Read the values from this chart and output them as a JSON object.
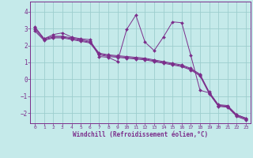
{
  "xlabel": "Windchill (Refroidissement éolien,°C)",
  "xlim": [
    -0.5,
    23.5
  ],
  "ylim": [
    -2.6,
    4.6
  ],
  "xticks": [
    0,
    1,
    2,
    3,
    4,
    5,
    6,
    7,
    8,
    9,
    10,
    11,
    12,
    13,
    14,
    15,
    16,
    17,
    18,
    19,
    20,
    21,
    22,
    23
  ],
  "yticks": [
    -2,
    -1,
    0,
    1,
    2,
    3,
    4
  ],
  "background_color": "#c5eaea",
  "line_color": "#7b2d8b",
  "grid_color": "#9dcece",
  "series": {
    "jagged": [
      3.1,
      2.4,
      2.65,
      2.75,
      2.5,
      2.4,
      2.35,
      1.35,
      1.3,
      1.05,
      2.95,
      3.8,
      2.2,
      1.7,
      2.5,
      3.4,
      3.35,
      1.4,
      -0.65,
      -0.8,
      -1.55,
      -1.6,
      -2.1,
      -2.3
    ],
    "line1": [
      3.05,
      2.4,
      2.55,
      2.55,
      2.45,
      2.35,
      2.25,
      1.55,
      1.45,
      1.4,
      1.35,
      1.3,
      1.25,
      1.15,
      1.05,
      0.95,
      0.85,
      0.65,
      0.3,
      -0.75,
      -1.5,
      -1.55,
      -2.1,
      -2.3
    ],
    "line2": [
      2.95,
      2.35,
      2.5,
      2.5,
      2.4,
      2.3,
      2.2,
      1.5,
      1.4,
      1.35,
      1.3,
      1.25,
      1.2,
      1.1,
      1.0,
      0.9,
      0.8,
      0.6,
      0.25,
      -0.8,
      -1.55,
      -1.6,
      -2.15,
      -2.35
    ],
    "line3": [
      2.85,
      2.3,
      2.45,
      2.45,
      2.35,
      2.25,
      2.15,
      1.45,
      1.35,
      1.3,
      1.25,
      1.2,
      1.15,
      1.05,
      0.95,
      0.85,
      0.75,
      0.55,
      0.2,
      -0.85,
      -1.6,
      -1.65,
      -2.2,
      -2.4
    ]
  }
}
